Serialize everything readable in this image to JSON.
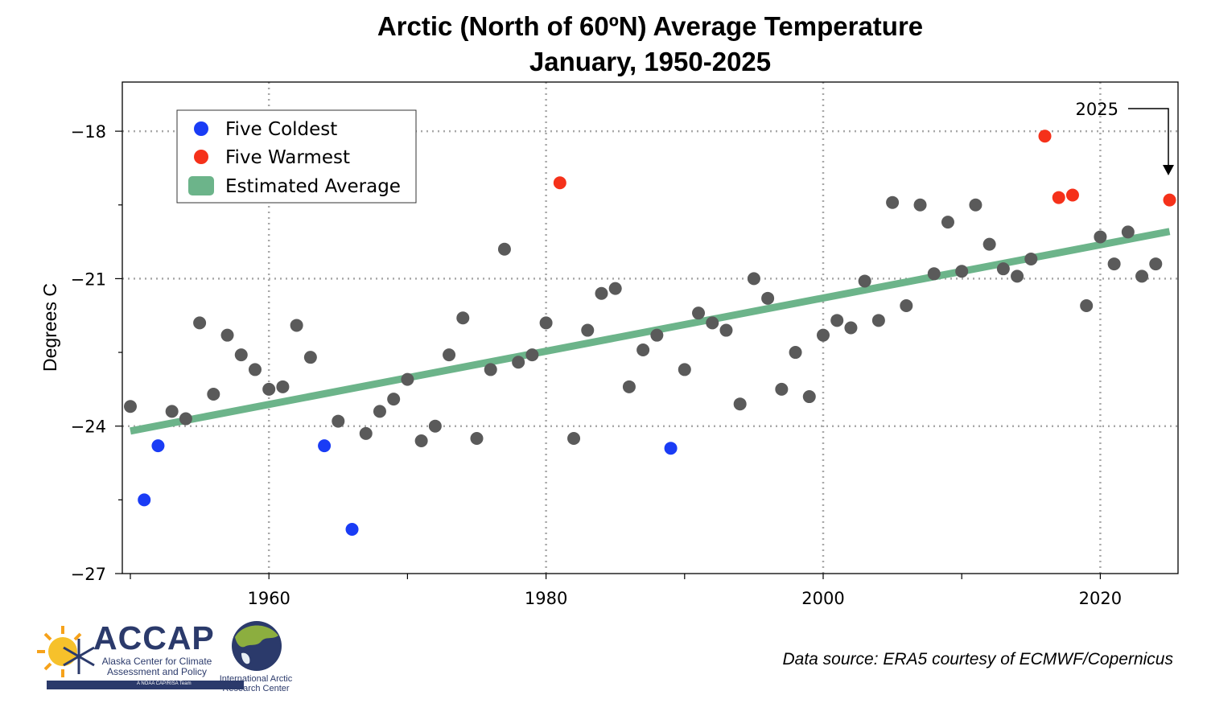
{
  "chart_data": {
    "type": "scatter",
    "title": "Arctic (North of 60ºN) Average Temperature",
    "subtitle": "January, 1950-2025",
    "xlabel": "",
    "ylabel": "Degrees C",
    "xlim": [
      1950,
      2025
    ],
    "ylim": [
      -27,
      -17
    ],
    "xticks": [
      1960,
      1980,
      2000,
      2020
    ],
    "yticks": [
      -27,
      -24,
      -21,
      -18
    ],
    "grid": true,
    "legend_position": "top-left",
    "legend": [
      {
        "label": "Five Coldest",
        "color": "#1a3cf5"
      },
      {
        "label": "Five Warmest",
        "color": "#f5311a"
      },
      {
        "label": "Estimated Average",
        "color": "#6cb48a"
      }
    ],
    "annotation": {
      "text": "2025",
      "year": 2025
    },
    "colors": {
      "normal": "#5a5a5a",
      "coldest": "#1a3cf5",
      "warmest": "#f5311a",
      "trend": "#6cb48a"
    },
    "trend": {
      "x": [
        1950,
        2025
      ],
      "y": [
        -24.1,
        -20.04
      ]
    },
    "series": [
      {
        "x": 1950,
        "y": -23.6
      },
      {
        "x": 1951,
        "y": -25.5,
        "cat": "coldest"
      },
      {
        "x": 1952,
        "y": -24.4,
        "cat": "coldest"
      },
      {
        "x": 1953,
        "y": -23.7
      },
      {
        "x": 1954,
        "y": -23.85
      },
      {
        "x": 1955,
        "y": -21.9
      },
      {
        "x": 1956,
        "y": -23.35
      },
      {
        "x": 1957,
        "y": -22.15
      },
      {
        "x": 1958,
        "y": -22.55
      },
      {
        "x": 1959,
        "y": -22.85
      },
      {
        "x": 1960,
        "y": -23.25
      },
      {
        "x": 1961,
        "y": -23.2
      },
      {
        "x": 1962,
        "y": -21.95
      },
      {
        "x": 1963,
        "y": -22.6
      },
      {
        "x": 1964,
        "y": -24.4,
        "cat": "coldest"
      },
      {
        "x": 1965,
        "y": -23.9
      },
      {
        "x": 1966,
        "y": -26.1,
        "cat": "coldest"
      },
      {
        "x": 1967,
        "y": -24.15
      },
      {
        "x": 1968,
        "y": -23.7
      },
      {
        "x": 1969,
        "y": -23.45
      },
      {
        "x": 1970,
        "y": -23.05
      },
      {
        "x": 1971,
        "y": -24.3
      },
      {
        "x": 1972,
        "y": -24.0
      },
      {
        "x": 1973,
        "y": -22.55
      },
      {
        "x": 1974,
        "y": -21.8
      },
      {
        "x": 1975,
        "y": -24.25
      },
      {
        "x": 1976,
        "y": -22.85
      },
      {
        "x": 1977,
        "y": -20.4
      },
      {
        "x": 1978,
        "y": -22.7
      },
      {
        "x": 1979,
        "y": -22.55
      },
      {
        "x": 1980,
        "y": -21.9
      },
      {
        "x": 1981,
        "y": -19.05,
        "cat": "warmest"
      },
      {
        "x": 1982,
        "y": -24.25
      },
      {
        "x": 1983,
        "y": -22.05
      },
      {
        "x": 1984,
        "y": -21.3
      },
      {
        "x": 1985,
        "y": -21.2
      },
      {
        "x": 1986,
        "y": -23.2
      },
      {
        "x": 1987,
        "y": -22.45
      },
      {
        "x": 1988,
        "y": -22.15
      },
      {
        "x": 1989,
        "y": -24.45,
        "cat": "coldest"
      },
      {
        "x": 1990,
        "y": -22.85
      },
      {
        "x": 1991,
        "y": -21.7
      },
      {
        "x": 1992,
        "y": -21.9
      },
      {
        "x": 1993,
        "y": -22.05
      },
      {
        "x": 1994,
        "y": -23.55
      },
      {
        "x": 1995,
        "y": -21.0
      },
      {
        "x": 1996,
        "y": -21.4
      },
      {
        "x": 1997,
        "y": -23.25
      },
      {
        "x": 1998,
        "y": -22.5
      },
      {
        "x": 1999,
        "y": -23.4
      },
      {
        "x": 2000,
        "y": -22.15
      },
      {
        "x": 2001,
        "y": -21.85
      },
      {
        "x": 2002,
        "y": -22.0
      },
      {
        "x": 2003,
        "y": -21.05
      },
      {
        "x": 2004,
        "y": -21.85
      },
      {
        "x": 2005,
        "y": -19.45
      },
      {
        "x": 2006,
        "y": -21.55
      },
      {
        "x": 2007,
        "y": -19.5
      },
      {
        "x": 2008,
        "y": -20.9
      },
      {
        "x": 2009,
        "y": -19.85
      },
      {
        "x": 2010,
        "y": -20.85
      },
      {
        "x": 2011,
        "y": -19.5
      },
      {
        "x": 2012,
        "y": -20.3
      },
      {
        "x": 2013,
        "y": -20.8
      },
      {
        "x": 2014,
        "y": -20.95
      },
      {
        "x": 2015,
        "y": -20.6
      },
      {
        "x": 2016,
        "y": -18.1,
        "cat": "warmest"
      },
      {
        "x": 2017,
        "y": -19.35,
        "cat": "warmest"
      },
      {
        "x": 2018,
        "y": -19.3,
        "cat": "warmest"
      },
      {
        "x": 2019,
        "y": -21.55
      },
      {
        "x": 2020,
        "y": -20.15
      },
      {
        "x": 2021,
        "y": -20.7
      },
      {
        "x": 2022,
        "y": -20.05
      },
      {
        "x": 2023,
        "y": -20.95
      },
      {
        "x": 2024,
        "y": -20.7
      },
      {
        "x": 2025,
        "y": -19.4,
        "cat": "warmest"
      }
    ]
  },
  "logos": {
    "accap_name": "ACCAP",
    "accap_full": "Alaska Center for Climate Assessment and Policy",
    "accap_tag": "A NOAA CAP/RISA Team",
    "iarc_name": "International Arctic Research Center"
  },
  "source": "Data source: ERA5 courtesy of ECMWF/Copernicus"
}
